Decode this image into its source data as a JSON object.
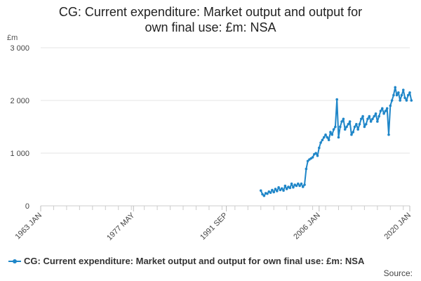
{
  "chart_data": {
    "type": "line",
    "title_line1": "CG: Current expenditure: Market output and output for",
    "title_line2": "own final use: £m: NSA",
    "ylabel": "£m",
    "ylim": [
      0,
      3000
    ],
    "yticks": [
      0,
      1000,
      2000,
      3000
    ],
    "ytick_labels": [
      "0",
      "1 000",
      "2 000",
      "3 000"
    ],
    "xlim": [
      1963,
      2020
    ],
    "xticks": [
      1963,
      1977.33,
      1991.67,
      2006,
      2020
    ],
    "xtick_labels": [
      "1963 JAN",
      "1977 MAY",
      "1991 SEP",
      "2006 JAN",
      "2020 JAN"
    ],
    "grid": true,
    "legend_position": "bottom-left",
    "series": [
      {
        "name": "CG: Current expenditure: Market output and output for own final use: £m: NSA",
        "color": "#1f86c8",
        "x": [
          1997.0,
          1997.25,
          1997.5,
          1997.75,
          1998.0,
          1998.25,
          1998.5,
          1998.75,
          1999.0,
          1999.25,
          1999.5,
          1999.75,
          2000.0,
          2000.25,
          2000.5,
          2000.75,
          2001.0,
          2001.25,
          2001.5,
          2001.75,
          2002.0,
          2002.25,
          2002.5,
          2002.75,
          2003.0,
          2003.25,
          2003.5,
          2003.75,
          2004.0,
          2004.25,
          2004.5,
          2004.75,
          2005.0,
          2005.25,
          2005.5,
          2005.75,
          2006.0,
          2006.25,
          2006.5,
          2006.75,
          2007.0,
          2007.25,
          2007.5,
          2007.75,
          2008.0,
          2008.25,
          2008.5,
          2008.75,
          2009.0,
          2009.25,
          2009.5,
          2009.75,
          2010.0,
          2010.25,
          2010.5,
          2010.75,
          2011.0,
          2011.25,
          2011.5,
          2011.75,
          2012.0,
          2012.25,
          2012.5,
          2012.75,
          2013.0,
          2013.25,
          2013.5,
          2013.75,
          2014.0,
          2014.25,
          2014.5,
          2014.75,
          2015.0,
          2015.25,
          2015.5,
          2015.75,
          2016.0,
          2016.25,
          2016.5,
          2016.75,
          2017.0,
          2017.25,
          2017.5,
          2017.75,
          2018.0,
          2018.25,
          2018.5,
          2018.75,
          2019.0,
          2019.25,
          2019.5,
          2019.75,
          2020.0,
          2020.25
        ],
        "values": [
          290,
          220,
          190,
          240,
          230,
          270,
          250,
          300,
          260,
          320,
          280,
          350,
          300,
          330,
          290,
          380,
          320,
          360,
          340,
          420,
          350,
          400,
          380,
          420,
          380,
          420,
          360,
          400,
          700,
          850,
          880,
          900,
          920,
          980,
          1000,
          950,
          1100,
          1200,
          1250,
          1300,
          1350,
          1300,
          1250,
          1400,
          1350,
          1450,
          1500,
          2020,
          1300,
          1500,
          1600,
          1650,
          1450,
          1500,
          1550,
          1600,
          1350,
          1400,
          1500,
          1550,
          1450,
          1550,
          1650,
          1700,
          1500,
          1550,
          1650,
          1700,
          1600,
          1650,
          1700,
          1750,
          1600,
          1700,
          1800,
          1850,
          1750,
          1800,
          1850,
          1350,
          1900,
          2000,
          2100,
          2250,
          2100,
          2150,
          2000,
          2100,
          2200,
          2050,
          2000,
          2100,
          2150,
          2000
        ]
      }
    ]
  },
  "source_label": "Source:"
}
